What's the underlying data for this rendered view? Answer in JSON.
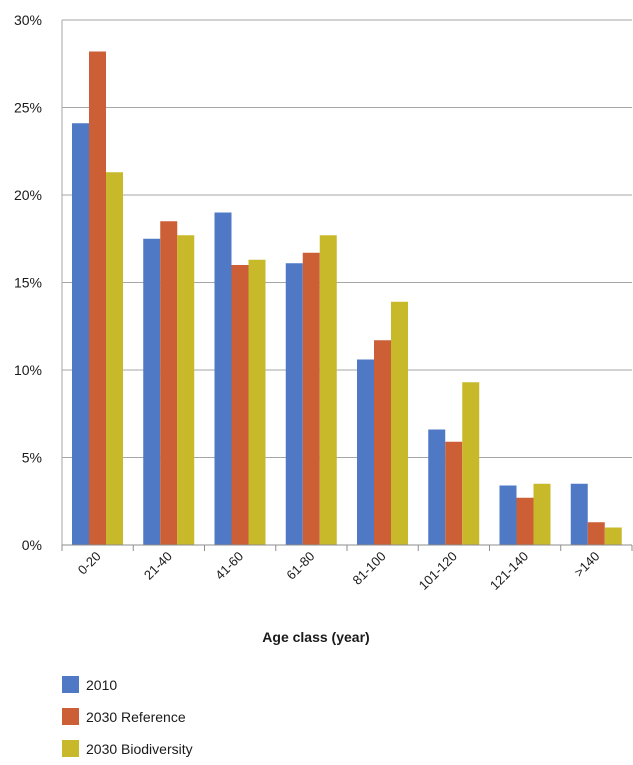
{
  "chart_data": {
    "type": "bar",
    "categories": [
      "0-20",
      "21-40",
      "41-60",
      "61-80",
      "81-100",
      "101-120",
      "121-140",
      ">140"
    ],
    "series": [
      {
        "name": "2010",
        "values": [
          24.1,
          17.5,
          19.0,
          16.1,
          10.6,
          6.6,
          3.4,
          3.5
        ]
      },
      {
        "name": "2030 Reference",
        "values": [
          28.2,
          18.5,
          16.0,
          16.7,
          11.7,
          5.9,
          2.7,
          1.3
        ]
      },
      {
        "name": "2030 Biodiversity",
        "values": [
          21.3,
          17.7,
          16.3,
          17.7,
          13.9,
          9.3,
          3.5,
          1.0
        ]
      }
    ],
    "xlabel": "Age class (year)",
    "ylabel": "",
    "ylim": [
      0,
      30
    ],
    "yticks": [
      0,
      5,
      10,
      15,
      20,
      25,
      30
    ],
    "ytick_labels": [
      "0%",
      "5%",
      "10%",
      "15%",
      "20%",
      "25%",
      "30%"
    ],
    "grid": true,
    "legend_position": "bottom-left",
    "colors": [
      "#4f79c5",
      "#cc5f35",
      "#c8b92a"
    ]
  }
}
